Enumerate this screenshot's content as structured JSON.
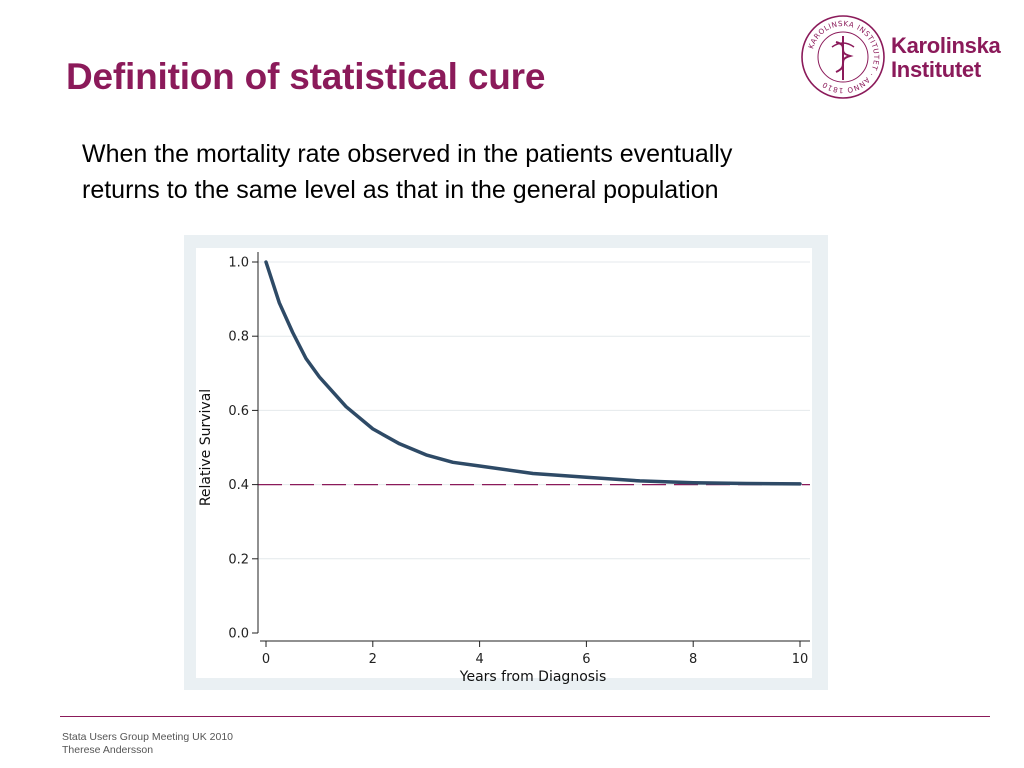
{
  "slide": {
    "title": "Definition of statistical cure",
    "lead_lines": [
      "When the mortality rate observed in the patients eventually",
      "returns to the same level as that in the general population"
    ]
  },
  "logo": {
    "line1": "Karolinska",
    "line2": "Institutet",
    "seal_text": "KAROLINSKA INSTITUTET · ANNO 1810",
    "icon": "seal-icon",
    "color": "#8b1a5a"
  },
  "footer": {
    "line1": "Stata Users Group Meeting UK  2010",
    "line2": "Therese Andersson"
  },
  "chart_data": {
    "type": "line",
    "title": "",
    "xlabel": "Years from Diagnosis",
    "ylabel": "Relative Survival",
    "xlim": [
      0,
      10
    ],
    "ylim": [
      0,
      1
    ],
    "x_ticks": [
      0,
      2,
      4,
      6,
      8,
      10
    ],
    "y_ticks": [
      0.0,
      0.2,
      0.4,
      0.6,
      0.8,
      1.0
    ],
    "x_tick_labels": [
      "0",
      "2",
      "4",
      "6",
      "8",
      "10"
    ],
    "y_tick_labels": [
      "0.0",
      "0.2",
      "0.4",
      "0.6",
      "0.8",
      "1.0"
    ],
    "grid": "horizontal",
    "legend": "none",
    "series": [
      {
        "style": "solid",
        "color": "#2e4a66",
        "x": [
          0,
          0.25,
          0.5,
          0.75,
          1,
          1.5,
          2,
          2.5,
          3,
          3.5,
          4,
          5,
          6,
          7,
          8,
          9,
          10
        ],
        "y": [
          1.0,
          0.89,
          0.81,
          0.74,
          0.69,
          0.61,
          0.55,
          0.51,
          0.48,
          0.46,
          0.45,
          0.43,
          0.42,
          0.41,
          0.405,
          0.403,
          0.402
        ]
      },
      {
        "style": "dashed",
        "color": "#8b1a5a",
        "x": [
          0,
          10
        ],
        "y": [
          0.4,
          0.4
        ]
      }
    ]
  }
}
